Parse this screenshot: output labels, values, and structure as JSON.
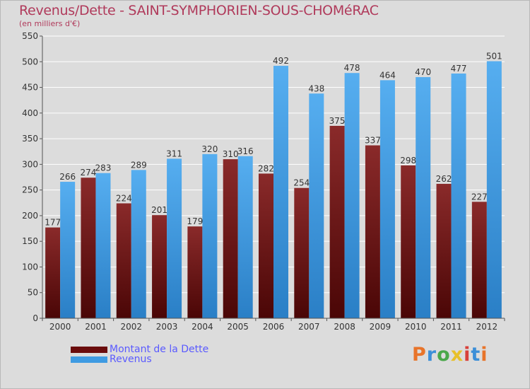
{
  "header": {
    "title": "Revenus/Dette - SAINT-SYMPHORIEN-SOUS-CHOMéRAC",
    "subtitle": "(en milliers d'€)"
  },
  "logo": {
    "text": "Proxiti",
    "colors": [
      "#e8742a",
      "#3c8fd8",
      "#4aa84a",
      "#e8c02a",
      "#d8403a",
      "#3c8fd8",
      "#e8742a"
    ]
  },
  "colors": {
    "dette": "#7a1a1a",
    "revenus": "#3f9be2"
  },
  "chart_data": {
    "type": "bar",
    "title": "Revenus/Dette - SAINT-SYMPHORIEN-SOUS-CHOMéRAC",
    "ylabel": "(en milliers d'€)",
    "xlabel": "",
    "categories": [
      "2000",
      "2001",
      "2002",
      "2003",
      "2004",
      "2005",
      "2006",
      "2007",
      "2008",
      "2009",
      "2010",
      "2011",
      "2012"
    ],
    "series": [
      {
        "name": "Montant de la Dette",
        "values": [
          177,
          274,
          224,
          201,
          179,
          310,
          282,
          254,
          375,
          337,
          298,
          262,
          227
        ]
      },
      {
        "name": "Revenus",
        "values": [
          266,
          283,
          289,
          311,
          320,
          316,
          492,
          438,
          478,
          464,
          470,
          477,
          501
        ]
      }
    ],
    "ylim": [
      0,
      550
    ],
    "yticks": [
      0,
      50,
      100,
      150,
      200,
      250,
      300,
      350,
      400,
      450,
      500,
      550
    ],
    "grid": true,
    "legend": "bottom-left"
  }
}
